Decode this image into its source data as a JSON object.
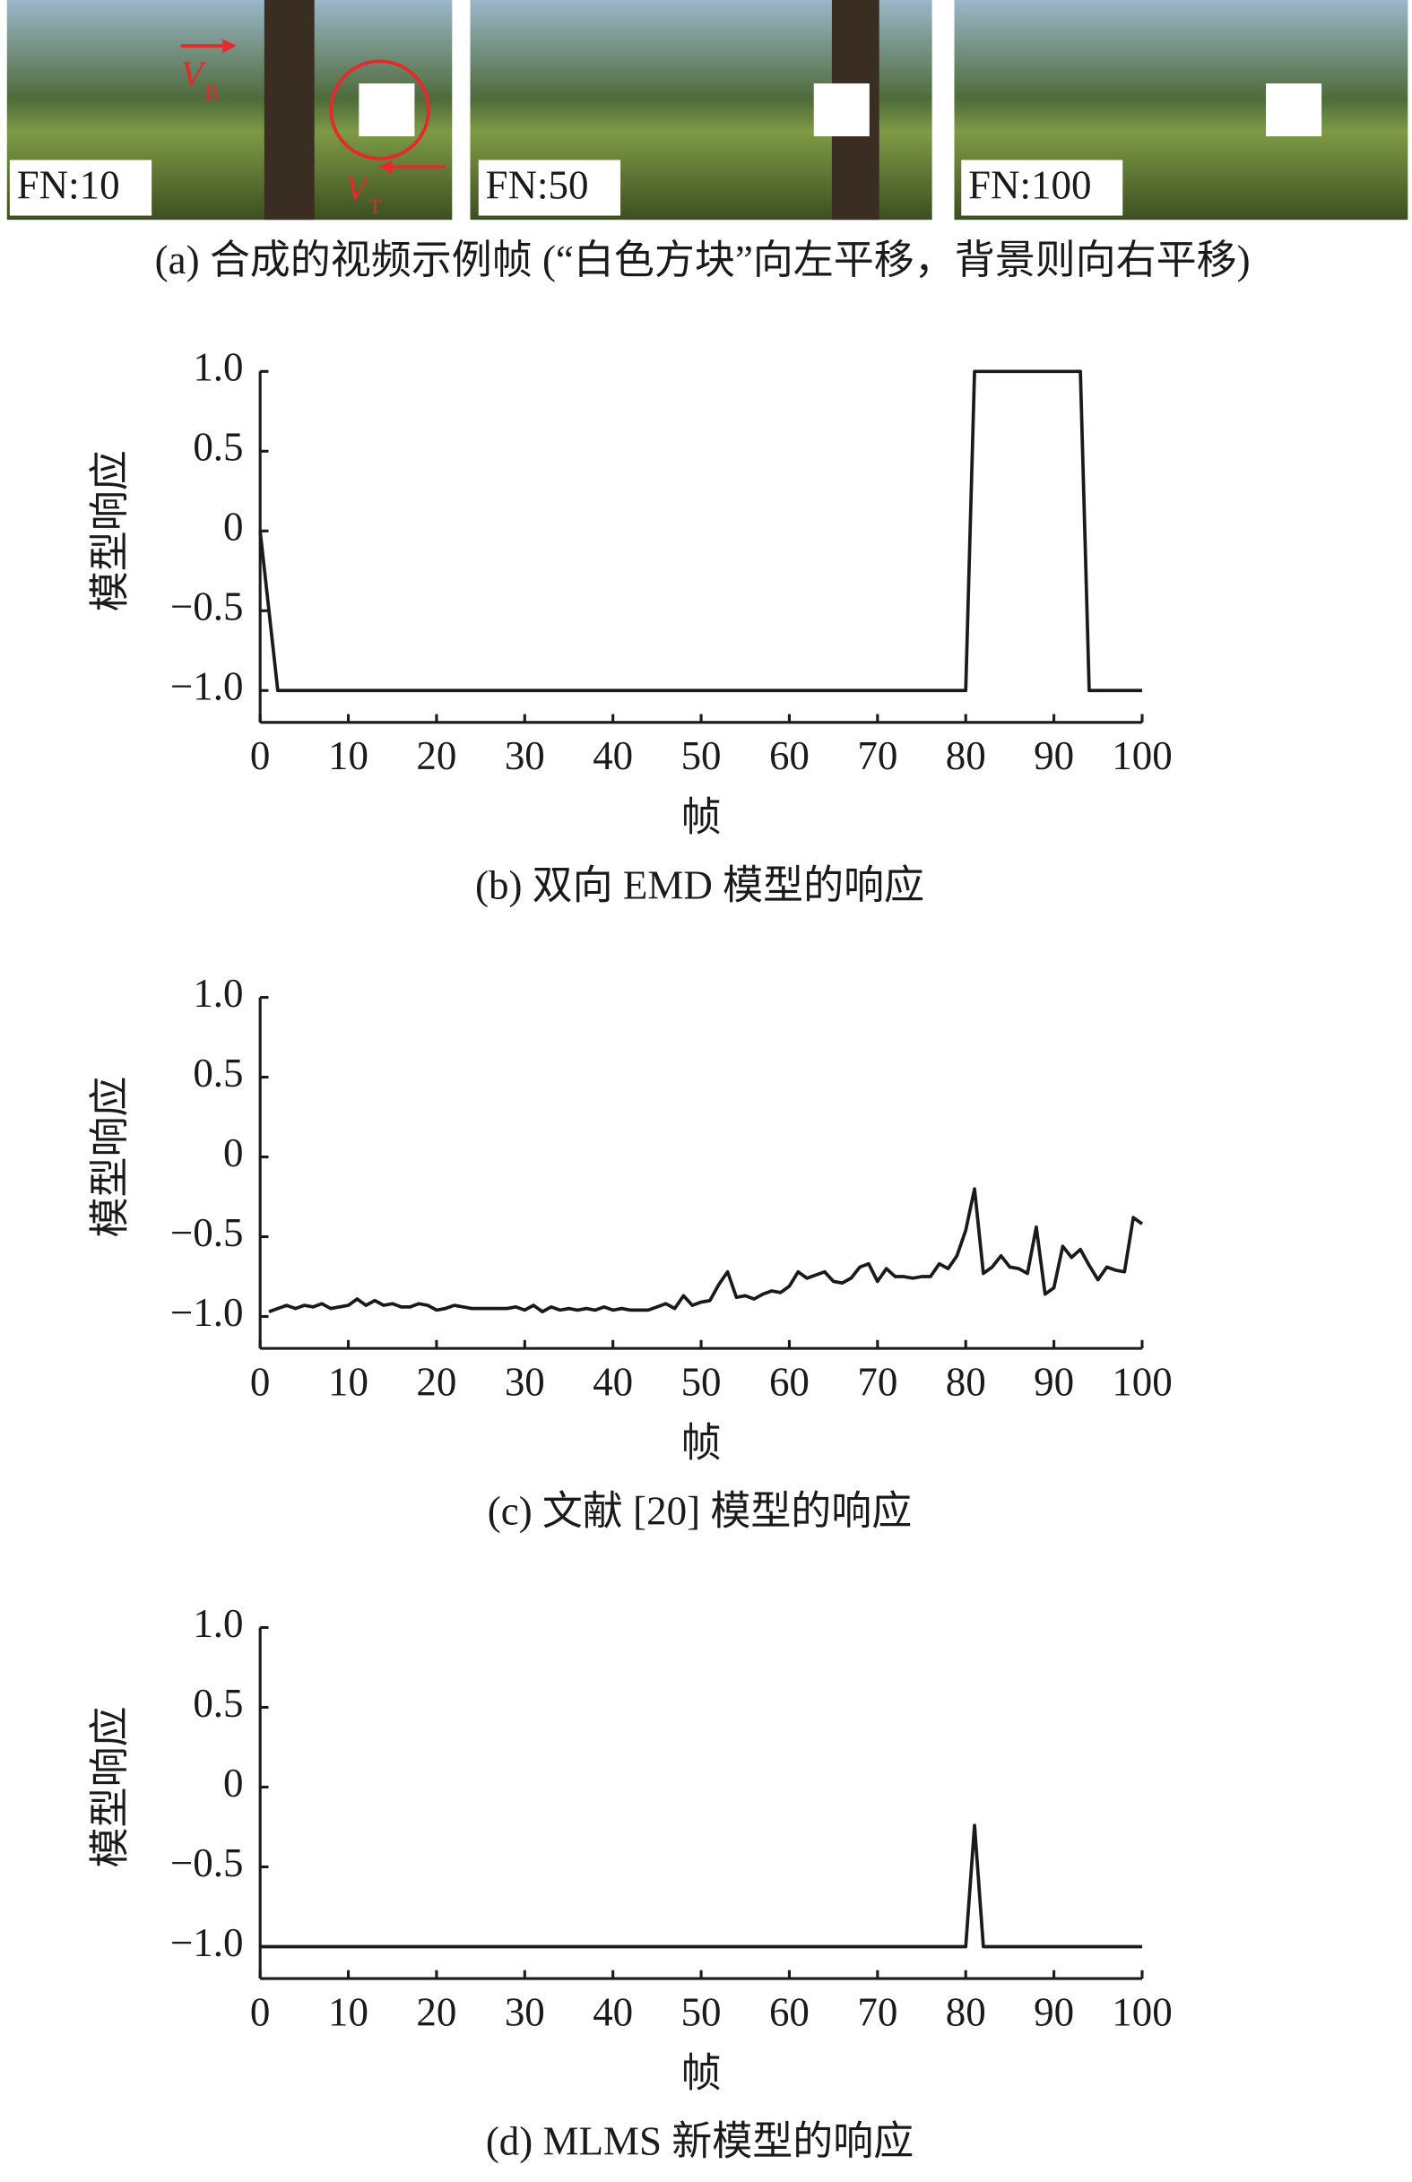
{
  "panel_a": {
    "frames": [
      {
        "label": "FN:10"
      },
      {
        "label": "FN:50"
      },
      {
        "label": "FN:100"
      }
    ],
    "vb": {
      "symbol": "V",
      "subscript": "B"
    },
    "vt": {
      "symbol": "V",
      "subscript": "T"
    },
    "caption": "(a) 合成的视频示例帧 (“白色方块”向左平移，背景则向右平移)"
  },
  "chart_data": [
    {
      "type": "line",
      "caption": "(b) 双向 EMD 模型的响应",
      "ylabel": "模型响应",
      "xlabel": "帧",
      "color": "#1a1a1a",
      "x": [
        0,
        2,
        80,
        81,
        93,
        94,
        100
      ],
      "values": [
        0,
        -1,
        -1,
        1,
        1,
        -1,
        -1
      ],
      "xlim": [
        0,
        100
      ],
      "ylim": [
        -1.2,
        1
      ],
      "xticks": [
        0,
        10,
        20,
        30,
        40,
        50,
        60,
        70,
        80,
        90,
        100
      ],
      "yticks": [
        {
          "value": 1,
          "label": "1.0"
        },
        0.5,
        0,
        {
          "value": -0.5,
          "label": "−0.5"
        },
        {
          "value": -1,
          "label": "−1.0"
        }
      ]
    },
    {
      "type": "line",
      "caption": "(c) 文献 [20] 模型的响应",
      "ylabel": "模型响应",
      "xlabel": "帧",
      "color": "#1a1a1a",
      "x": [
        1,
        2,
        3,
        4,
        5,
        6,
        7,
        8,
        9,
        10,
        11,
        12,
        13,
        14,
        15,
        16,
        17,
        18,
        19,
        20,
        21,
        22,
        23,
        24,
        25,
        26,
        27,
        28,
        29,
        30,
        31,
        32,
        33,
        34,
        35,
        36,
        37,
        38,
        39,
        40,
        41,
        42,
        43,
        44,
        45,
        46,
        47,
        48,
        49,
        50,
        51,
        52,
        53,
        54,
        55,
        56,
        57,
        58,
        59,
        60,
        61,
        62,
        63,
        64,
        65,
        66,
        67,
        68,
        69,
        70,
        71,
        72,
        73,
        74,
        75,
        76,
        77,
        78,
        79,
        80,
        81,
        82,
        83,
        84,
        85,
        86,
        87,
        88,
        89,
        90,
        91,
        92,
        93,
        94,
        95,
        96,
        97,
        98,
        99,
        100
      ],
      "values": [
        -0.97,
        -0.95,
        -0.93,
        -0.95,
        -0.93,
        -0.94,
        -0.92,
        -0.95,
        -0.94,
        -0.93,
        -0.89,
        -0.93,
        -0.9,
        -0.93,
        -0.92,
        -0.94,
        -0.94,
        -0.92,
        -0.93,
        -0.96,
        -0.95,
        -0.93,
        -0.94,
        -0.95,
        -0.95,
        -0.95,
        -0.95,
        -0.95,
        -0.94,
        -0.96,
        -0.93,
        -0.97,
        -0.94,
        -0.96,
        -0.95,
        -0.96,
        -0.95,
        -0.96,
        -0.94,
        -0.96,
        -0.95,
        -0.96,
        -0.96,
        -0.96,
        -0.94,
        -0.92,
        -0.95,
        -0.87,
        -0.93,
        -0.91,
        -0.9,
        -0.8,
        -0.72,
        -0.88,
        -0.87,
        -0.89,
        -0.86,
        -0.84,
        -0.85,
        -0.81,
        -0.72,
        -0.76,
        -0.74,
        -0.72,
        -0.78,
        -0.79,
        -0.76,
        -0.69,
        -0.67,
        -0.78,
        -0.7,
        -0.75,
        -0.75,
        -0.76,
        -0.75,
        -0.75,
        -0.67,
        -0.7,
        -0.62,
        -0.46,
        -0.2,
        -0.73,
        -0.69,
        -0.62,
        -0.69,
        -0.7,
        -0.73,
        -0.44,
        -0.86,
        -0.82,
        -0.56,
        -0.63,
        -0.58,
        -0.68,
        -0.77,
        -0.69,
        -0.71,
        -0.72,
        -0.38,
        -0.42
      ],
      "xlim": [
        0,
        100
      ],
      "ylim": [
        -1.2,
        1
      ],
      "xticks": [
        0,
        10,
        20,
        30,
        40,
        50,
        60,
        70,
        80,
        90,
        100
      ],
      "yticks": [
        {
          "value": 1,
          "label": "1.0"
        },
        0.5,
        0,
        {
          "value": -0.5,
          "label": "−0.5"
        },
        {
          "value": -1,
          "label": "−1.0"
        }
      ]
    },
    {
      "type": "line",
      "caption": "(d) MLMS 新模型的响应",
      "ylabel": "模型响应",
      "xlabel": "帧",
      "color": "#1a1a1a",
      "x": [
        0,
        80,
        81,
        82,
        100
      ],
      "values": [
        -1,
        -1,
        -0.24,
        -1,
        -1
      ],
      "xlim": [
        0,
        100
      ],
      "ylim": [
        -1.2,
        1
      ],
      "xticks": [
        0,
        10,
        20,
        30,
        40,
        50,
        60,
        70,
        80,
        90,
        100
      ],
      "yticks": [
        {
          "value": 1,
          "label": "1.0"
        },
        0.5,
        0,
        {
          "value": -0.5,
          "label": "−0.5"
        },
        {
          "value": -1,
          "label": "−1.0"
        }
      ]
    }
  ]
}
